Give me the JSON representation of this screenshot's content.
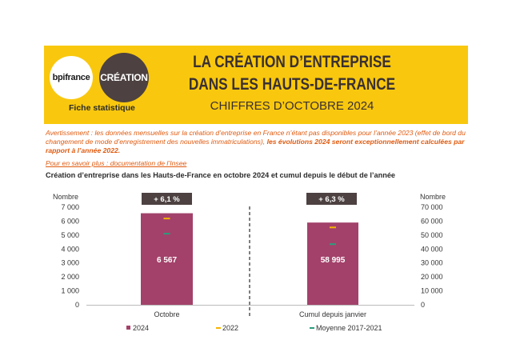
{
  "header": {
    "bpi_logo": "bpifrance",
    "creation_logo": "CRÉATION",
    "fiche": "Fiche statistique",
    "title_line1": "LA CRÉATION D’ENTREPRISE",
    "title_line2": "DANS LES HAUTS-DE-FRANCE",
    "title_line3": "CHIFFRES D’OCTOBRE 2024"
  },
  "notice": {
    "part1": "Avertissement : les données mensuelles sur la création d’entreprise en France n’étant pas disponibles pour l’année 2023 (effet de bord du changement de mode d’enregistrement des nouvelles immatriculations), ",
    "part2": "les évolutions 2024 seront exceptionnellement calculées par rapport à l’année 2022.",
    "link": "Pour en savoir plus : documentation de l’Insee"
  },
  "chart_title": "Création d’entreprise dans les Hauts-de-France  en octobre 2024 et cumul depuis le début de l’année",
  "colors": {
    "bar": "#a3416a",
    "y2022": "#f5b400",
    "avg": "#2a9d7c",
    "badge": "#4d4141",
    "banner": "#f9c80e"
  },
  "chart_data": [
    {
      "type": "bar",
      "category": "Octobre",
      "ylabel": "Nombre",
      "ylim": [
        0,
        7000
      ],
      "ticks": [
        "0",
        "1 000",
        "2 000",
        "3 000",
        "4 000",
        "5 000",
        "6 000",
        "7 000"
      ],
      "series": [
        {
          "name": "2024",
          "value": 6567,
          "label": "6 567"
        },
        {
          "name": "2022",
          "value": 6190
        },
        {
          "name": "Moyenne 2017-2021",
          "value": 5100
        }
      ],
      "badge": "+ 6,1 %"
    },
    {
      "type": "bar",
      "category": "Cumul depuis janvier",
      "ylabel": "Nombre",
      "ylim": [
        0,
        70000
      ],
      "ticks": [
        "0",
        "10 000",
        "20 000",
        "30 000",
        "40 000",
        "50 000",
        "60 000",
        "70 000"
      ],
      "series": [
        {
          "name": "2024",
          "value": 58995,
          "label": "58 995"
        },
        {
          "name": "2022",
          "value": 55500
        },
        {
          "name": "Moyenne 2017-2021",
          "value": 43500
        }
      ],
      "badge": "+ 6,3 %"
    }
  ],
  "legend": [
    "2024",
    "2022",
    "Moyenne 2017-2021"
  ]
}
